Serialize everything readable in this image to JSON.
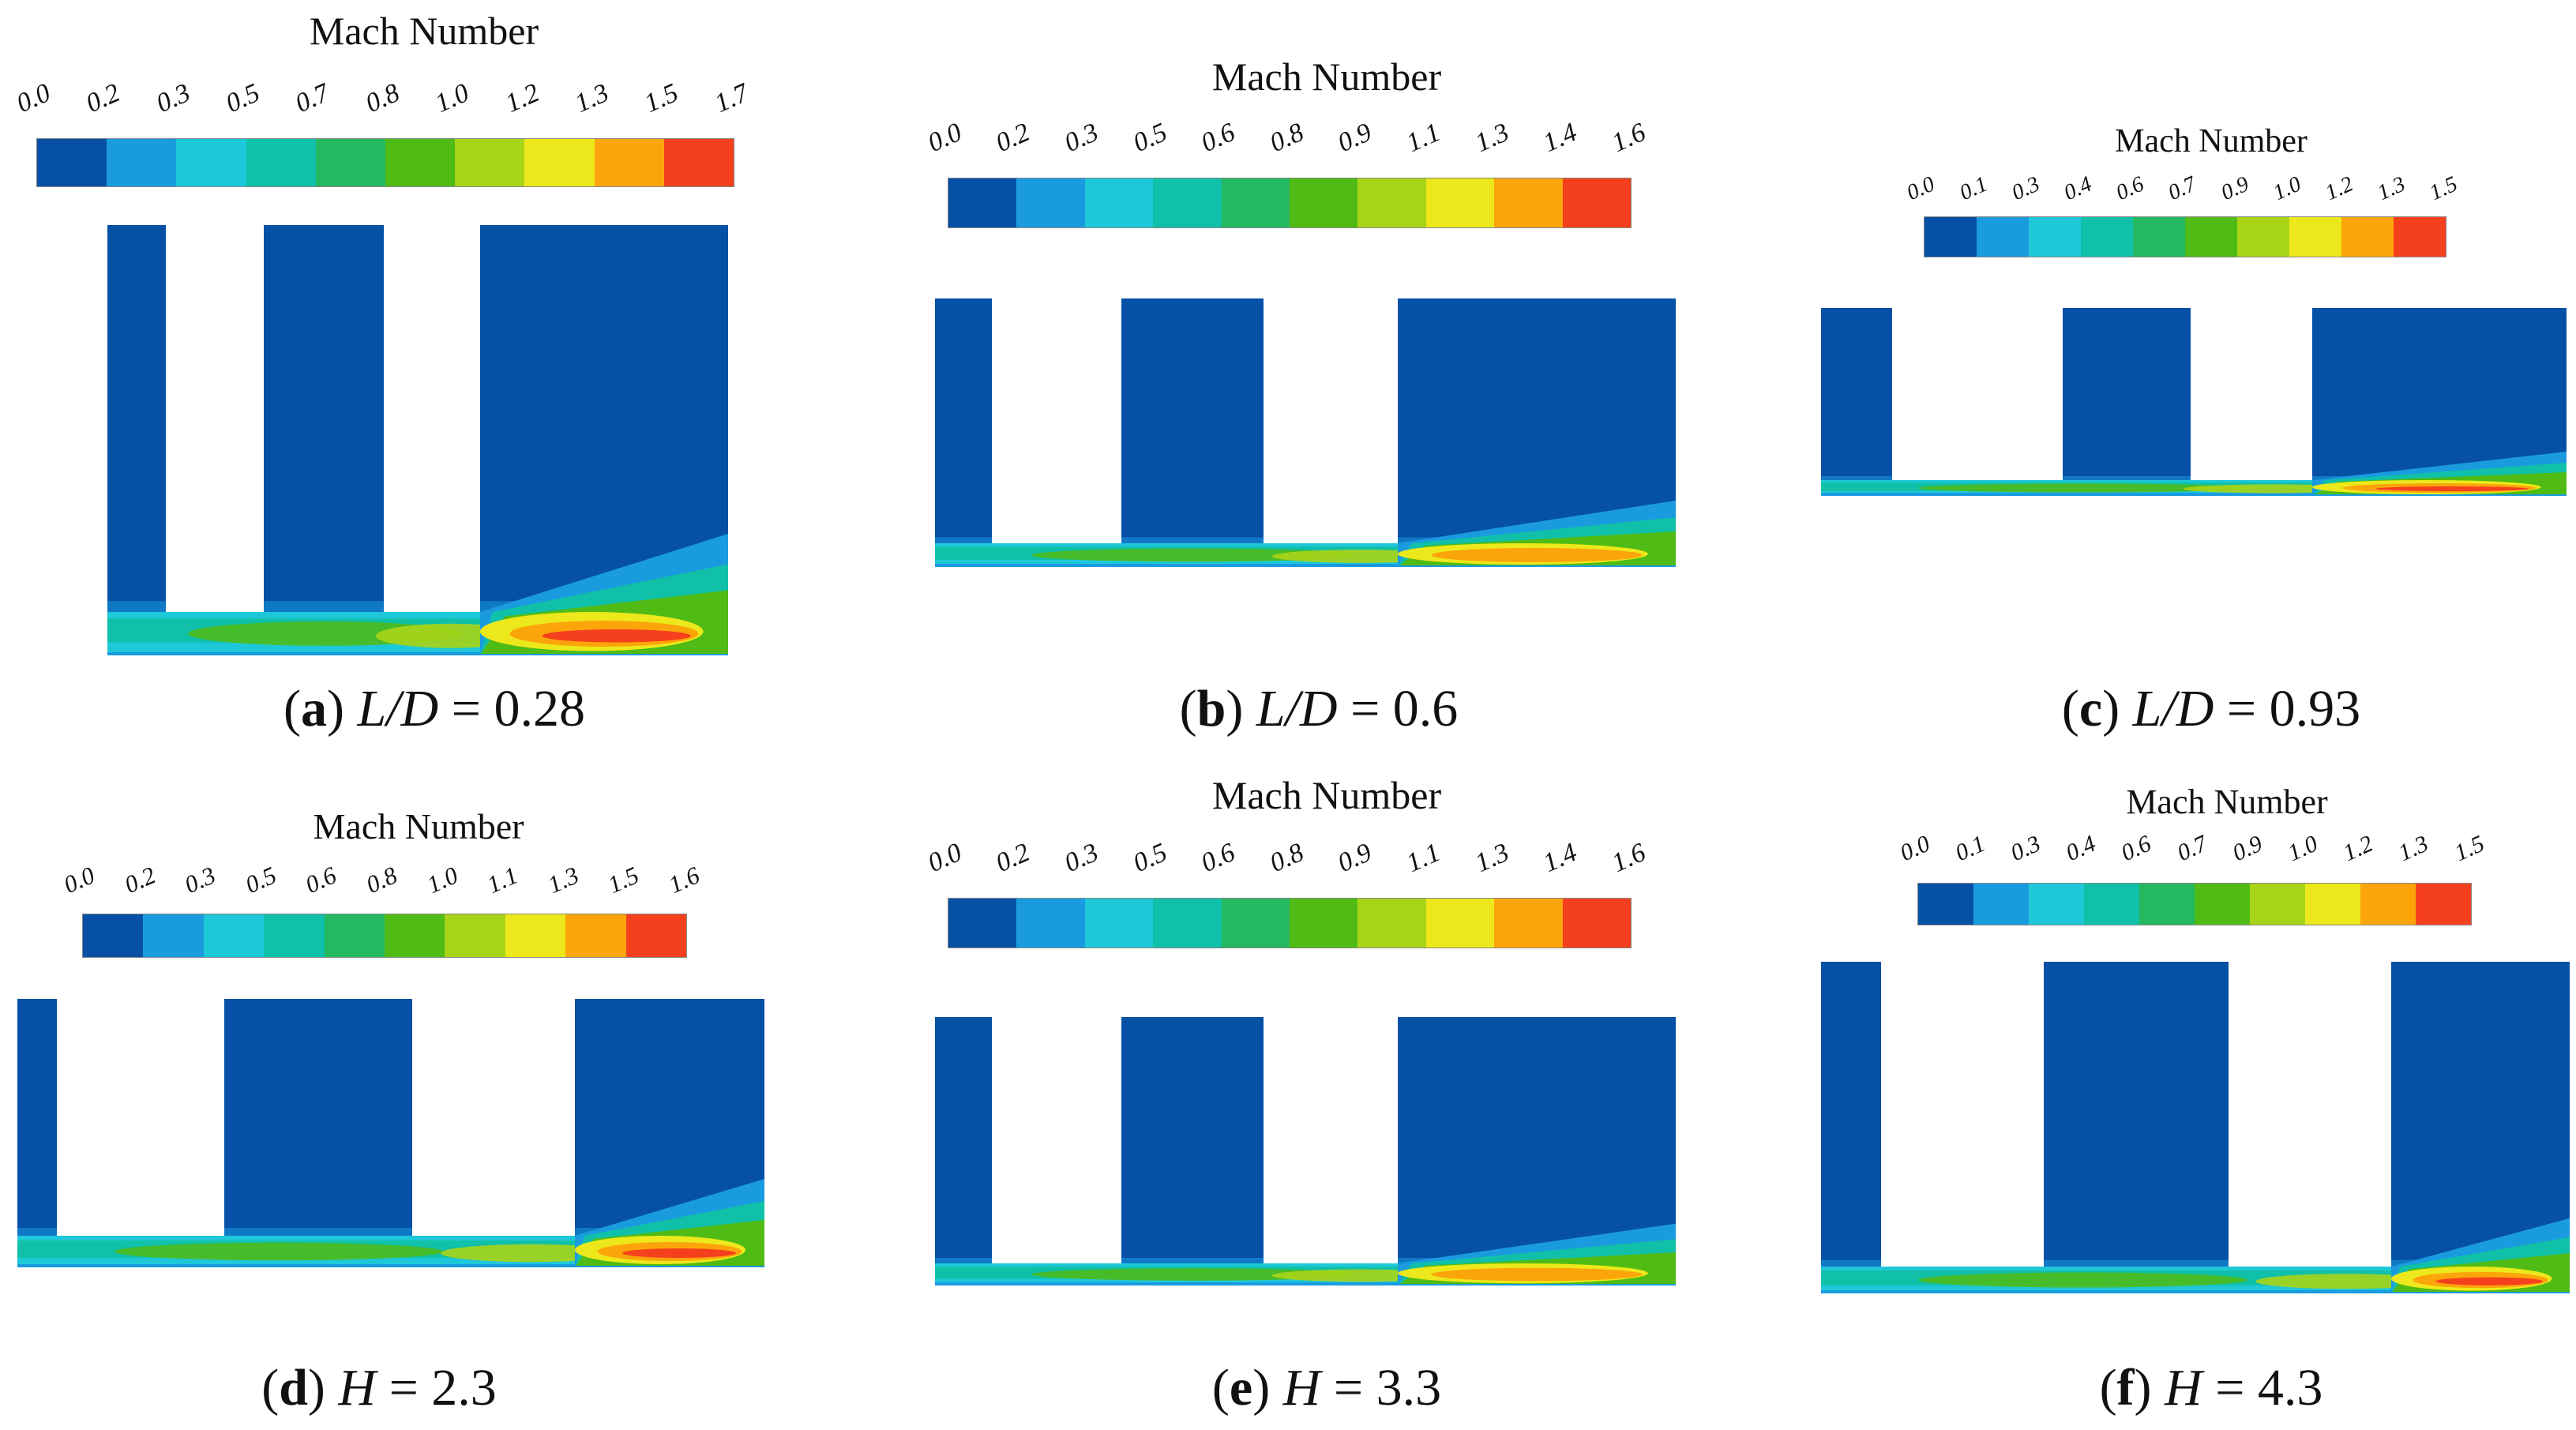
{
  "colors": {
    "background": "#ffffff",
    "field_base": "#0650a6",
    "levels": [
      "#0650a6",
      "#1a9be0",
      "#1ec8d8",
      "#10c0a8",
      "#24b860",
      "#50bb14",
      "#a8d418",
      "#ece81c",
      "#fca50a",
      "#f5401e"
    ]
  },
  "panels": [
    {
      "id": "a",
      "cb_title": "Mach Number",
      "ticks": [
        "0.0",
        "0.2",
        "0.3",
        "0.5",
        "0.7",
        "0.8",
        "1.0",
        "1.2",
        "1.3",
        "1.5",
        "1.7"
      ],
      "caption": {
        "letter": "a",
        "var": "L/D",
        "value": "= 0.28"
      }
    },
    {
      "id": "b",
      "cb_title": "Mach Number",
      "ticks": [
        "0.0",
        "0.2",
        "0.3",
        "0.5",
        "0.6",
        "0.8",
        "0.9",
        "1.1",
        "1.3",
        "1.4",
        "1.6"
      ],
      "caption": {
        "letter": "b",
        "var": "L/D",
        "value": "= 0.6"
      }
    },
    {
      "id": "c",
      "cb_title": "Mach Number",
      "ticks": [
        "0.0",
        "0.1",
        "0.3",
        "0.4",
        "0.6",
        "0.7",
        "0.9",
        "1.0",
        "1.2",
        "1.3",
        "1.5"
      ],
      "caption": {
        "letter": "c",
        "var": "L/D",
        "value": "= 0.93"
      }
    },
    {
      "id": "d",
      "cb_title": "Mach Number",
      "ticks": [
        "0.0",
        "0.2",
        "0.3",
        "0.5",
        "0.6",
        "0.8",
        "1.0",
        "1.1",
        "1.3",
        "1.5",
        "1.6"
      ],
      "caption": {
        "letter": "d",
        "var": "H",
        "value": "= 2.3"
      }
    },
    {
      "id": "e",
      "cb_title": "Mach Number",
      "ticks": [
        "0.0",
        "0.2",
        "0.3",
        "0.5",
        "0.6",
        "0.8",
        "0.9",
        "1.1",
        "1.3",
        "1.4",
        "1.6"
      ],
      "caption": {
        "letter": "e",
        "var": "H",
        "value": "= 3.3"
      }
    },
    {
      "id": "f",
      "cb_title": "Mach Number",
      "ticks": [
        "0.0",
        "0.1",
        "0.3",
        "0.4",
        "0.6",
        "0.7",
        "0.9",
        "1.0",
        "1.2",
        "1.3",
        "1.5"
      ],
      "caption": {
        "letter": "f",
        "var": "H",
        "value": "= 4.3"
      }
    }
  ]
}
